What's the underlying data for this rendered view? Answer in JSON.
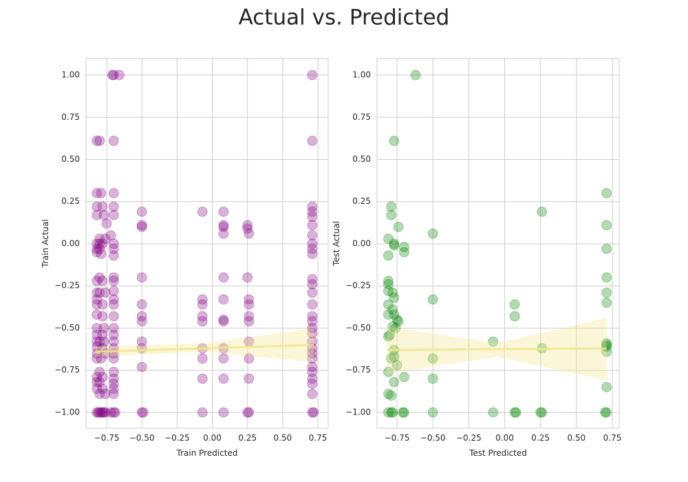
{
  "title": "Actual vs. Predicted",
  "chart_data": [
    {
      "type": "scatter",
      "xlabel": "Train Predicted",
      "ylabel": "Train Actual",
      "color": "#800080",
      "alpha": 0.3,
      "grid": true,
      "xlim": [
        -0.897,
        0.823
      ],
      "ylim": [
        -1.094,
        1.098
      ],
      "xticks": [
        {
          "value": -0.75,
          "label": "−0.75"
        },
        {
          "value": -0.5,
          "label": "−0.50"
        },
        {
          "value": -0.25,
          "label": "−0.25"
        },
        {
          "value": 0,
          "label": "0.00"
        },
        {
          "value": 0.25,
          "label": "0.25"
        },
        {
          "value": 0.5,
          "label": "0.50"
        },
        {
          "value": 0.75,
          "label": "0.75"
        }
      ],
      "yticks": [
        {
          "value": -1,
          "label": "−1.00"
        },
        {
          "value": -0.75,
          "label": "−0.75"
        },
        {
          "value": -0.5,
          "label": "−0.50"
        },
        {
          "value": -0.25,
          "label": "−0.25"
        },
        {
          "value": 0,
          "label": "0.00"
        },
        {
          "value": 0.25,
          "label": "0.25"
        },
        {
          "value": 0.5,
          "label": "0.50"
        },
        {
          "value": 0.75,
          "label": "0.75"
        },
        {
          "value": 1,
          "label": "1.00"
        }
      ],
      "x": [
        -0.7,
        -0.71,
        -0.66,
        0.71,
        -0.82,
        -0.8,
        -0.7,
        0.71,
        -0.82,
        -0.79,
        -0.7,
        -0.82,
        -0.78,
        -0.7,
        0.71,
        -0.82,
        -0.77,
        -0.7,
        0.71,
        0.71,
        -0.5,
        -0.07,
        0.08,
        -0.5,
        -0.5,
        0.08,
        0.08,
        0.25,
        0.25,
        -0.75,
        0.71,
        -0.8,
        -0.76,
        -0.72,
        0.71,
        0.08,
        0.26,
        -0.82,
        -0.8,
        -0.78,
        -0.7,
        0.71,
        -0.82,
        -0.8,
        -0.7,
        0.71,
        -0.82,
        -0.79,
        -0.7,
        0.71,
        -0.8,
        -0.7,
        -0.5,
        0.08,
        0.25,
        0.71,
        -0.82,
        -0.78,
        -0.7,
        0.71,
        -0.82,
        -0.8,
        -0.76,
        -0.7,
        0.71,
        -0.82,
        -0.7,
        -0.07,
        0.08,
        0.26,
        -0.82,
        -0.78,
        -0.7,
        -0.5,
        -0.07,
        0.26,
        0.71,
        -0.82,
        -0.78,
        -0.7,
        -0.5,
        -0.07,
        0.08,
        0.26,
        0.71,
        -0.5,
        -0.07,
        0.08,
        0.26,
        0.71,
        -0.82,
        -0.77,
        -0.7,
        0.71,
        0.71,
        -0.82,
        -0.78,
        -0.7,
        -0.82,
        -0.8,
        -0.77,
        -0.7,
        -0.5,
        0.26,
        0.71,
        -0.82,
        -0.78,
        -0.7,
        -0.5,
        -0.07,
        0.08,
        0.71,
        -0.82,
        -0.76,
        -0.7,
        0.71,
        -0.82,
        -0.79,
        -0.7,
        -0.07,
        0.08,
        0.26,
        0.71,
        -0.5,
        0.71,
        -0.8,
        -0.7,
        0.71,
        -0.82,
        -0.78,
        -0.7,
        -0.07,
        0.08,
        0.26,
        0.71,
        -0.82,
        -0.8,
        -0.7,
        0.71,
        -0.82,
        -0.78,
        -0.7,
        -0.8,
        -0.76,
        -0.7,
        0.71,
        -0.82,
        -0.81,
        -0.8,
        -0.79,
        -0.78,
        -0.77,
        -0.76,
        -0.72,
        -0.7,
        -0.69,
        -0.5,
        -0.49,
        -0.07,
        0.08,
        0.25,
        0.26,
        0.71,
        0.72
      ],
      "y": [
        1.0,
        1.0,
        1.0,
        1.0,
        0.61,
        0.61,
        0.61,
        0.61,
        0.3,
        0.3,
        0.3,
        0.22,
        0.22,
        0.22,
        0.22,
        0.17,
        0.17,
        0.17,
        0.19,
        0.16,
        0.19,
        0.19,
        0.19,
        0.11,
        0.1,
        0.11,
        0.1,
        0.11,
        0.09,
        0.12,
        0.11,
        0.03,
        0.03,
        0.05,
        0.05,
        0.06,
        0.06,
        0.0,
        0.0,
        0.0,
        0.0,
        0.0,
        -0.03,
        -0.03,
        -0.03,
        -0.03,
        -0.05,
        -0.06,
        -0.07,
        -0.06,
        -0.2,
        -0.2,
        -0.2,
        -0.2,
        -0.2,
        -0.21,
        -0.22,
        -0.22,
        -0.22,
        -0.24,
        -0.29,
        -0.29,
        -0.29,
        -0.28,
        -0.29,
        -0.33,
        -0.33,
        -0.33,
        -0.33,
        -0.33,
        -0.36,
        -0.36,
        -0.36,
        -0.36,
        -0.36,
        -0.36,
        -0.36,
        -0.42,
        -0.43,
        -0.43,
        -0.43,
        -0.43,
        -0.45,
        -0.43,
        -0.43,
        -0.46,
        -0.46,
        -0.46,
        -0.46,
        -0.46,
        -0.5,
        -0.5,
        -0.5,
        -0.5,
        -0.53,
        -0.54,
        -0.54,
        -0.54,
        -0.58,
        -0.58,
        -0.58,
        -0.58,
        -0.58,
        -0.58,
        -0.58,
        -0.61,
        -0.62,
        -0.62,
        -0.62,
        -0.62,
        -0.62,
        -0.62,
        -0.65,
        -0.65,
        -0.65,
        -0.65,
        -0.68,
        -0.68,
        -0.68,
        -0.68,
        -0.68,
        -0.68,
        -0.68,
        -0.73,
        -0.73,
        -0.76,
        -0.76,
        -0.76,
        -0.79,
        -0.79,
        -0.8,
        -0.8,
        -0.8,
        -0.8,
        -0.8,
        -0.82,
        -0.82,
        -0.83,
        -0.83,
        -0.86,
        -0.86,
        -0.86,
        -0.89,
        -0.89,
        -0.89,
        -0.89,
        -1,
        -1,
        -1,
        -1,
        -1,
        -1,
        -1,
        -1,
        -1,
        -1,
        -1,
        -1,
        -1,
        -1,
        -1,
        -1,
        -1,
        -1
      ],
      "fit": {
        "color": "#f0e68c",
        "x": [
          -0.83,
          -0.05,
          0.72
        ],
        "y": [
          -0.64,
          -0.62,
          -0.6
        ],
        "upper": [
          -0.61,
          -0.59,
          -0.5
        ],
        "lower": [
          -0.67,
          -0.64,
          -0.7
        ]
      }
    },
    {
      "type": "scatter",
      "xlabel": "Test Predicted",
      "ylabel": "Test Actual",
      "color": "#008000",
      "alpha": 0.3,
      "grid": true,
      "xlim": [
        -0.889,
        0.798
      ],
      "ylim": [
        -1.094,
        1.098
      ],
      "xticks": [
        {
          "value": -0.75,
          "label": "−0.75"
        },
        {
          "value": -0.5,
          "label": "−0.50"
        },
        {
          "value": -0.25,
          "label": "−0.25"
        },
        {
          "value": 0,
          "label": "0.00"
        },
        {
          "value": 0.25,
          "label": "0.25"
        },
        {
          "value": 0.5,
          "label": "0.50"
        },
        {
          "value": 0.75,
          "label": "0.75"
        }
      ],
      "yticks": [
        {
          "value": -1,
          "label": "−1.00"
        },
        {
          "value": -0.75,
          "label": "−0.75"
        },
        {
          "value": -0.5,
          "label": "−0.50"
        },
        {
          "value": -0.25,
          "label": "−0.25"
        },
        {
          "value": 0,
          "label": "0.00"
        },
        {
          "value": 0.25,
          "label": "0.25"
        },
        {
          "value": 0.5,
          "label": "0.50"
        },
        {
          "value": 0.75,
          "label": "0.75"
        },
        {
          "value": 1,
          "label": "1.00"
        }
      ],
      "x": [
        -0.62,
        -0.77,
        0.71,
        -0.79,
        0.26,
        -0.79,
        0.71,
        -0.74,
        -0.5,
        -0.81,
        -0.77,
        -0.77,
        -0.7,
        0.71,
        -0.7,
        -0.81,
        -0.81,
        -0.81,
        0.71,
        -0.81,
        -0.78,
        0.71,
        -0.77,
        -0.5,
        0.71,
        -0.81,
        0.07,
        -0.78,
        -0.81,
        -0.77,
        0.07,
        -0.75,
        -0.74,
        -0.78,
        -0.76,
        -0.8,
        -0.81,
        -0.08,
        0.71,
        0.71,
        0.71,
        -0.77,
        0.26,
        0.71,
        -0.79,
        -0.77,
        -0.5,
        -0.75,
        -0.81,
        -0.7,
        -0.5,
        -0.77,
        0.71,
        -0.81,
        -0.79,
        -0.81,
        -0.79,
        -0.78,
        -0.71,
        -0.7,
        -0.5,
        -0.08,
        0.07,
        0.08,
        0.25,
        0.26,
        0.7,
        0.71
      ],
      "y": [
        1.0,
        0.61,
        0.3,
        0.22,
        0.19,
        0.17,
        0.11,
        0.1,
        0.06,
        0.03,
        0.0,
        -0.01,
        -0.02,
        -0.03,
        -0.05,
        -0.07,
        -0.22,
        -0.24,
        -0.2,
        -0.28,
        -0.29,
        -0.29,
        -0.32,
        -0.33,
        -0.35,
        -0.36,
        -0.36,
        -0.39,
        -0.42,
        -0.42,
        -0.43,
        -0.45,
        -0.46,
        -0.49,
        -0.5,
        -0.54,
        -0.55,
        -0.58,
        -0.59,
        -0.6,
        -0.61,
        -0.63,
        -0.62,
        -0.64,
        -0.68,
        -0.67,
        -0.68,
        -0.72,
        -0.76,
        -0.79,
        -0.8,
        -0.82,
        -0.85,
        -0.89,
        -0.9,
        -1,
        -1,
        -1,
        -1,
        -1,
        -1,
        -1,
        -1,
        -1,
        -1,
        -1,
        -1,
        -1
      ],
      "fit": {
        "color": "#f0e68c",
        "x": [
          -0.82,
          -0.05,
          0.71
        ],
        "y": [
          -0.63,
          -0.625,
          -0.62
        ],
        "upper": [
          -0.49,
          -0.59,
          -0.44
        ],
        "lower": [
          -0.77,
          -0.67,
          -0.81
        ]
      }
    }
  ]
}
